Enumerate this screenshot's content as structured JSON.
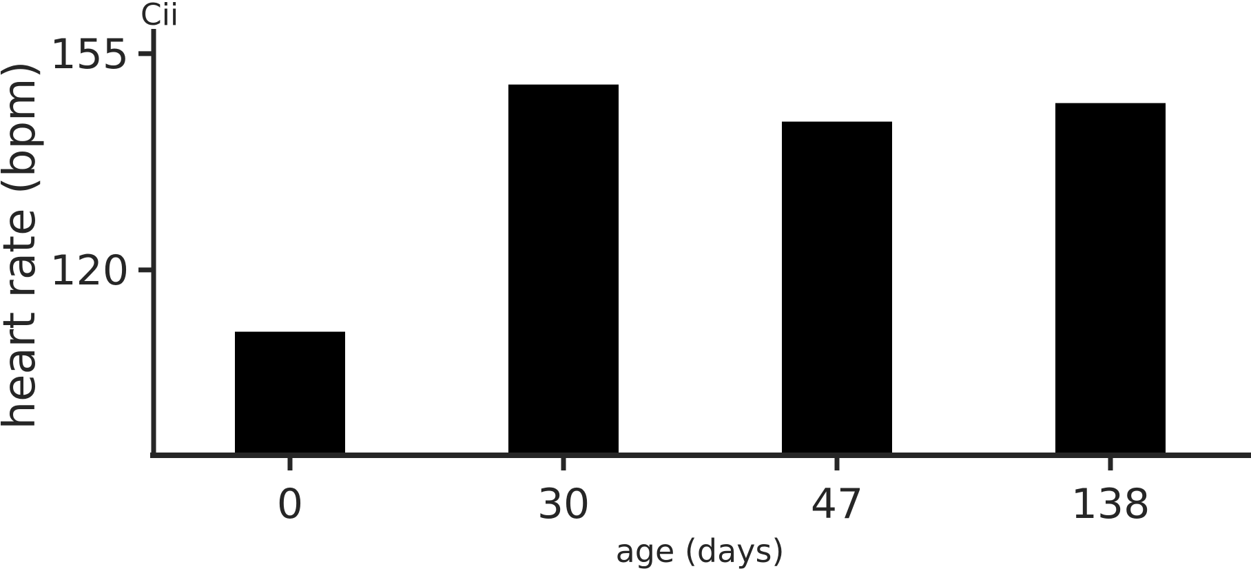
{
  "chart_data": {
    "type": "bar",
    "panel_label": "Cii",
    "categories": [
      "0",
      "30",
      "47",
      "138"
    ],
    "values": [
      110,
      150,
      144,
      147
    ],
    "xlabel": "age (days)",
    "ylabel": "heart rate (bpm)",
    "ylim": [
      90,
      159
    ],
    "yticks": [
      120,
      155
    ],
    "grid": false,
    "legend": "none",
    "bar_color": "#000000",
    "axis_color": "#262626"
  }
}
